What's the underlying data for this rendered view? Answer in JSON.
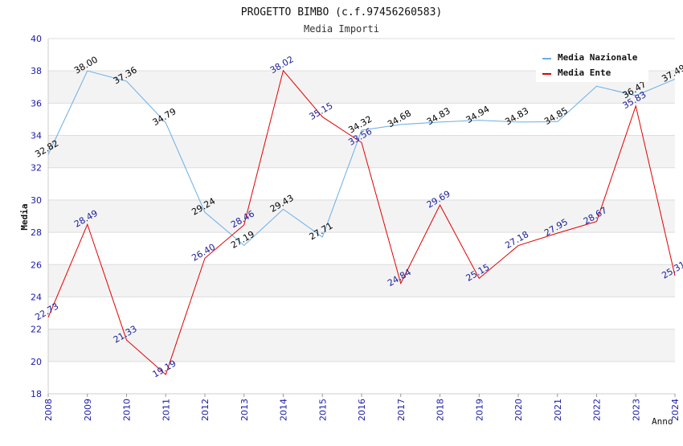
{
  "chart_data": {
    "type": "line",
    "title": "PROGETTO BIMBO (c.f.97456260583)",
    "subtitle": "Media Importi",
    "xlabel": "Anno",
    "ylabel": "Media",
    "ylim": [
      18,
      40
    ],
    "yticks": [
      18,
      20,
      22,
      24,
      26,
      28,
      30,
      32,
      34,
      36,
      38,
      40
    ],
    "categories": [
      "2008",
      "2009",
      "2010",
      "2011",
      "2012",
      "2013",
      "2014",
      "2015",
      "2016",
      "2017",
      "2018",
      "2019",
      "2020",
      "2021",
      "2022",
      "2023",
      "2024"
    ],
    "legend_position": "top-right",
    "grid": "horizontal-bands",
    "series": [
      {
        "name": "Media Nazionale",
        "color": "#6aaee6",
        "label_color": "#000000",
        "values": [
          32.82,
          38.0,
          37.36,
          34.79,
          29.24,
          27.19,
          29.43,
          27.71,
          34.32,
          34.68,
          34.83,
          34.94,
          34.83,
          34.85,
          null,
          36.47,
          37.49
        ],
        "labels": [
          "32.82",
          "38.00",
          "37.36",
          "34.79",
          "29.24",
          "27.19",
          "29.43",
          "27.71",
          "34.32",
          "34.68",
          "34.83",
          "34.94",
          "34.83",
          "34.85",
          "",
          "36.47",
          "37.49"
        ],
        "plot_values": [
          32.82,
          38.0,
          37.36,
          34.79,
          29.24,
          27.19,
          29.43,
          27.71,
          34.32,
          34.68,
          34.83,
          34.94,
          34.83,
          34.85,
          37.05,
          36.47,
          37.49
        ]
      },
      {
        "name": "Media Ente",
        "color": "#e00000",
        "label_color": "#1a1a9a",
        "values": [
          22.73,
          28.49,
          21.33,
          19.19,
          26.4,
          28.46,
          38.02,
          35.15,
          33.56,
          24.84,
          29.69,
          25.15,
          27.18,
          27.95,
          28.67,
          35.83,
          25.31
        ],
        "labels": [
          "22.73",
          "28.49",
          "21.33",
          "19.19",
          "26.40",
          "28.46",
          "38.02",
          "35.15",
          "33.56",
          "24.84",
          "29.69",
          "25.15",
          "27.18",
          "27.95",
          "28.67",
          "35.83",
          "25.31"
        ]
      }
    ]
  }
}
